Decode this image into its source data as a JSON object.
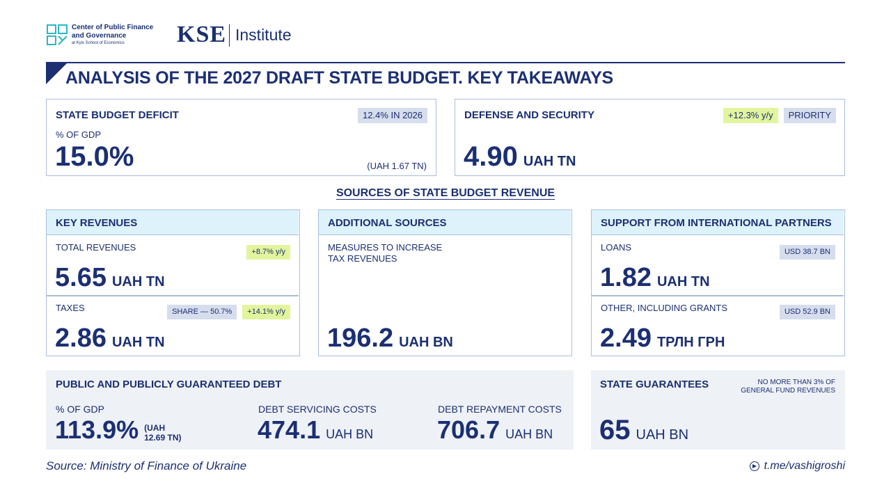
{
  "header": {
    "cpfg_line1": "Center of Public Finance",
    "cpfg_line2": "and Governance",
    "cpfg_line3": "at Kyiv School of Economics",
    "kse_word": "KSE",
    "kse_institute": "Institute",
    "title": "ANALYSIS OF THE 2027 DRAFT STATE BUDGET. KEY TAKEAWAYS"
  },
  "deficit": {
    "label": "STATE BUDGET DEFICIT",
    "badge": "12.4% IN 2026",
    "sublabel": "% OF GDP",
    "value": "15.0%",
    "note": "(UAH 1.67 TN)"
  },
  "defense": {
    "label": "DEFENSE AND SECURITY",
    "badge_growth": "+12.3% y/y",
    "badge_priority": "PRIORITY",
    "value": "4.90",
    "unit": "UAH TN"
  },
  "sources_title": "SOURCES OF STATE BUDGET REVENUE",
  "key_revenues": {
    "header": "KEY REVENUES",
    "total_label": "TOTAL REVENUES",
    "total_badge": "+8.7% y/y",
    "total_value": "5.65",
    "total_unit": "UAH TN",
    "taxes_label": "TAXES",
    "taxes_share": "SHARE — 50.7%",
    "taxes_badge": "+14.1% y/y",
    "taxes_value": "2.86",
    "taxes_unit": "UAH TN"
  },
  "additional": {
    "header": "ADDITIONAL SOURCES",
    "label_line1": "MEASURES TO INCREASE",
    "label_line2": "TAX REVENUES",
    "value": "196.2",
    "unit": "UAH BN"
  },
  "international": {
    "header": "SUPPORT FROM INTERNATIONAL PARTNERS",
    "loans_label": "LOANS",
    "loans_badge": "USD 38.7 BN",
    "loans_value": "1.82",
    "loans_unit": "UAH TN",
    "other_label": "OTHER, INCLUDING GRANTS",
    "other_badge": "USD 52.9 BN",
    "other_value": "2.49",
    "other_unit": "ТРЛН ГРН"
  },
  "debt": {
    "label": "PUBLIC AND PUBLICLY GUARANTEED DEBT",
    "gdp_label": "% OF GDP",
    "gdp_value": "113.9%",
    "gdp_note1": "(UAH",
    "gdp_note2": "12.69 TN)",
    "servicing_label": "DEBT SERVICING COSTS",
    "servicing_value": "474.1",
    "servicing_unit": "UAH BN",
    "repayment_label": "DEBT REPAYMENT COSTS",
    "repayment_value": "706.7",
    "repayment_unit": "UAH BN"
  },
  "guarantees": {
    "label": "STATE GUARANTEES",
    "note1": "NO MORE THAN 3% OF",
    "note2": "GENERAL FUND REVENUES",
    "value": "65",
    "unit": "UAH BN"
  },
  "footer": {
    "source": "Source: Ministry of Finance of Ukraine",
    "telegram": "t.me/vashigroshi"
  },
  "colors": {
    "navy": "#1b2f72",
    "border": "#a9bddd",
    "band": "#ddf2fa",
    "badge_gray": "#d6dded",
    "badge_green": "#e2f59d",
    "panel_gray": "#eef1f6",
    "logo_teal": "#2bb6c4"
  }
}
